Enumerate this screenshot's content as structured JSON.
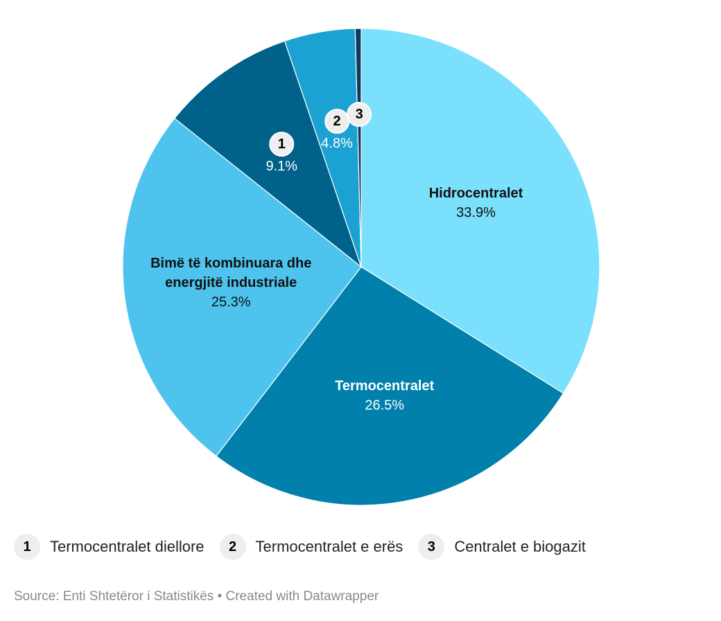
{
  "chart_data": {
    "type": "pie",
    "categories": [
      "Hidrocentralet",
      "Termocentralet",
      "Bimë të kombinuara dhe energjitë industriale",
      "Termocentralet diellore",
      "Termocentralet e erës",
      "Centralet e biogazit"
    ],
    "values": [
      33.9,
      26.5,
      25.3,
      9.1,
      4.8,
      0.4
    ],
    "value_labels": [
      "33.9%",
      "26.5%",
      "25.3%",
      "9.1%",
      "4.8%",
      null
    ],
    "colors": [
      "#7ae0fb",
      "#0080ab",
      "#4dc3ee",
      "#00618a",
      "#1ba2d3",
      "#0a3a5c"
    ],
    "keys": [
      null,
      null,
      null,
      "1",
      "2",
      "3"
    ],
    "source": "Source: Enti Shtetëror i Statistikës • Created with Datawrapper"
  }
}
